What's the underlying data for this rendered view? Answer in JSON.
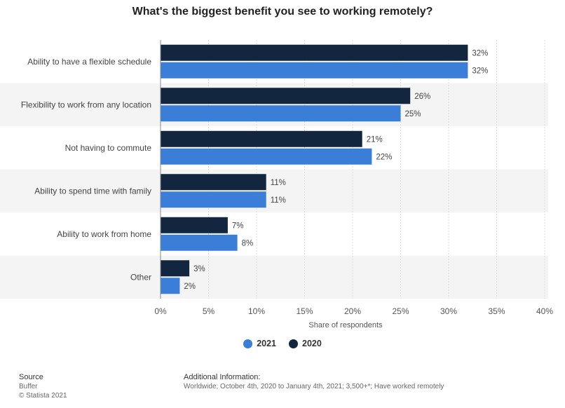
{
  "title": "What's the biggest benefit you see to working remotely?",
  "colors": {
    "2021": "#3a7ed8",
    "2020": "#12263f",
    "band": "#f4f4f4",
    "grid": "#dddddd"
  },
  "chart_data": {
    "type": "bar",
    "orientation": "horizontal",
    "categories": [
      "Ability to have a flexible schedule",
      "Flexibility to work from any location",
      "Not having to commute",
      "Ability to spend time with family",
      "Ability to work from home",
      "Other"
    ],
    "series": [
      {
        "name": "2020",
        "values": [
          32,
          26,
          21,
          11,
          7,
          3
        ],
        "color": "#12263f"
      },
      {
        "name": "2021",
        "values": [
          32,
          25,
          22,
          11,
          8,
          2
        ],
        "color": "#3a7ed8"
      }
    ],
    "xlabel": "Share of respondents",
    "xlim": [
      0,
      40
    ],
    "xticks": [
      0,
      5,
      10,
      15,
      20,
      25,
      30,
      35,
      40
    ],
    "tick_suffix": "%",
    "value_suffix": "%",
    "grid": true,
    "legend_position": "bottom"
  },
  "legend": [
    {
      "label": "2021",
      "color": "#3a7ed8"
    },
    {
      "label": "2020",
      "color": "#12263f"
    }
  ],
  "footer": {
    "source_heading": "Source",
    "source_name": "Buffer",
    "copyright": "© Statista 2021",
    "info_heading": "Additional Information:",
    "info_text": "Worldwide; October 4th, 2020 to January 4th, 2021; 3,500+*; Have worked remotely"
  }
}
